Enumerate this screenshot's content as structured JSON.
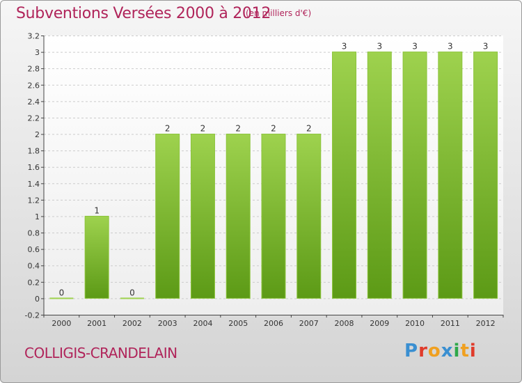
{
  "header": {
    "title": "Subventions Versées 2000 à 2012",
    "unit": "(en milliers d'€)"
  },
  "footer": {
    "commune": "COLLIGIS-CRANDELAIN",
    "logo": {
      "text": "Proxiti",
      "letter_colors": [
        "#3a8fd1",
        "#e03b2b",
        "#f0a020",
        "#3a8fd1",
        "#2fa84a",
        "#f0a020",
        "#e03b2b"
      ]
    }
  },
  "chart_data": {
    "type": "bar",
    "categories": [
      "2000",
      "2001",
      "2002",
      "2003",
      "2004",
      "2005",
      "2006",
      "2007",
      "2008",
      "2009",
      "2010",
      "2011",
      "2012"
    ],
    "values": [
      0,
      1,
      0,
      2,
      2,
      2,
      2,
      2,
      3,
      3,
      3,
      3,
      3
    ],
    "value_labels": [
      "0",
      "1",
      "0",
      "2",
      "2",
      "2",
      "2",
      "2",
      "3",
      "3",
      "3",
      "3",
      "3"
    ],
    "ylim": [
      -0.2,
      3.2
    ],
    "yticks": [
      -0.2,
      0,
      0.2,
      0.4,
      0.6,
      0.8,
      1,
      1.2,
      1.4,
      1.6,
      1.8,
      2,
      2.2,
      2.4,
      2.6,
      2.8,
      3,
      3.2
    ],
    "ytick_labels": [
      "-0.2",
      "0",
      "0.2",
      "0.4",
      "0.6",
      "0.8",
      "1",
      "1.2",
      "1.4",
      "1.6",
      "1.8",
      "2",
      "2.2",
      "2.4",
      "2.6",
      "2.8",
      "3",
      "3.2"
    ],
    "grid": true,
    "bar_color_top": "#9ed24e",
    "bar_color_bottom": "#5c9a16"
  }
}
